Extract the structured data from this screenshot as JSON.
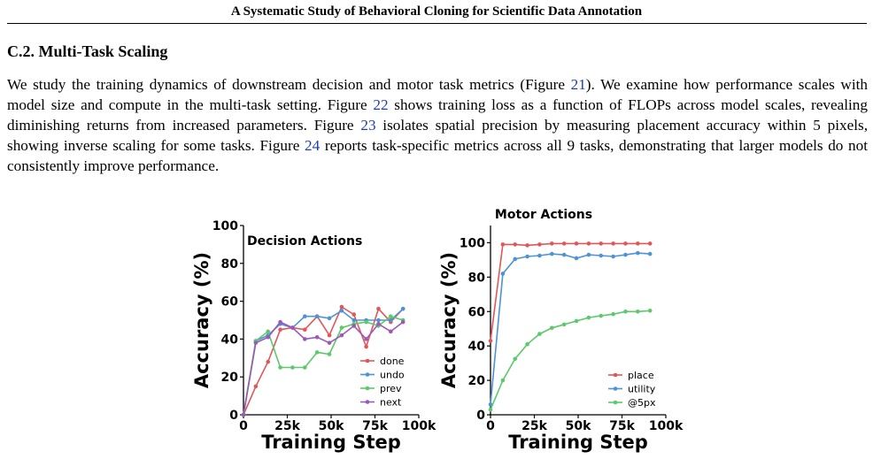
{
  "header": {
    "running_title": "A Systematic Study of Behavioral Cloning for Scientific Data Annotation"
  },
  "section": {
    "title": "C.2. Multi-Task Scaling",
    "paragraph": [
      {
        "text": "We study the training dynamics of downstream decision and motor task metrics (Figure "
      },
      {
        "text": "21",
        "ref": true
      },
      {
        "text": "). We examine how performance scales with model size and compute in the multi-task setting. Figure "
      },
      {
        "text": "22",
        "ref": true
      },
      {
        "text": " shows training loss as a function of FLOPs across model scales, revealing diminishing returns from increased parameters. Figure "
      },
      {
        "text": "23",
        "ref": true
      },
      {
        "text": " isolates spatial precision by measuring placement accuracy within 5 pixels, showing inverse scaling for some tasks. Figure "
      },
      {
        "text": "24",
        "ref": true
      },
      {
        "text": " reports task-specific metrics across all 9 tasks, demonstrating that larger models do not consistently improve performance."
      }
    ]
  },
  "chart_data": [
    {
      "type": "line",
      "title": "Decision Actions",
      "xlabel": "Training Step",
      "ylabel": "Accuracy (%)",
      "xlim": [
        0,
        100000
      ],
      "ylim": [
        0,
        100
      ],
      "xticks": [
        0,
        25000,
        50000,
        75000,
        100000
      ],
      "xtick_labels": [
        "0",
        "25k",
        "50k",
        "75k",
        "100k"
      ],
      "yticks": [
        0,
        20,
        40,
        60,
        80,
        100
      ],
      "ytick_labels": [
        "0",
        "20",
        "40",
        "60",
        "80",
        "100"
      ],
      "grid": false,
      "legend": "lower-right",
      "x": [
        0,
        7000,
        14000,
        21000,
        28000,
        35000,
        42000,
        49000,
        56000,
        63000,
        70000,
        77000,
        84000,
        91000
      ],
      "series": [
        {
          "name": "done",
          "color": "#e15759",
          "values": [
            0,
            15,
            28,
            45,
            46,
            45,
            52,
            42,
            57,
            53,
            36,
            56,
            49,
            56
          ]
        },
        {
          "name": "undo",
          "color": "#4e93d6",
          "values": [
            0,
            39,
            42,
            48,
            46,
            52,
            52,
            51,
            55,
            50,
            50,
            50,
            50,
            56
          ]
        },
        {
          "name": "prev",
          "color": "#5cc96a",
          "values": [
            0,
            39,
            44,
            25,
            25,
            25,
            33,
            32,
            46,
            48,
            49,
            47,
            52,
            50
          ]
        },
        {
          "name": "next",
          "color": "#9b59b6",
          "values": [
            0,
            38,
            41,
            49,
            46,
            40,
            41,
            38,
            42,
            47,
            40,
            48,
            44,
            49
          ]
        }
      ]
    },
    {
      "type": "line",
      "title": "Motor Actions",
      "xlabel": "Training Step",
      "ylabel": "Accuracy (%)",
      "xlim": [
        0,
        100000
      ],
      "ylim": [
        0,
        110
      ],
      "xticks": [
        0,
        25000,
        50000,
        75000,
        100000
      ],
      "xtick_labels": [
        "0",
        "25k",
        "50k",
        "75k",
        "100k"
      ],
      "yticks": [
        0,
        20,
        40,
        60,
        80,
        100
      ],
      "ytick_labels": [
        "0",
        "20",
        "40",
        "60",
        "80",
        "100"
      ],
      "grid": false,
      "legend": "lower-right",
      "x": [
        0,
        7000,
        14000,
        21000,
        28000,
        35000,
        42000,
        49000,
        56000,
        63000,
        70000,
        77000,
        84000,
        91000
      ],
      "series": [
        {
          "name": "place",
          "color": "#e15759",
          "values": [
            43,
            99,
            99,
            98.5,
            99,
            99.5,
            99.5,
            99.5,
            99.5,
            99.5,
            99.5,
            99.5,
            99.5,
            99.5
          ]
        },
        {
          "name": "utility",
          "color": "#4e93d6",
          "values": [
            6,
            82,
            90.5,
            92,
            92.5,
            93.5,
            93,
            91,
            93,
            92.5,
            92,
            93,
            94,
            93.5
          ]
        },
        {
          "name": "@5px",
          "color": "#5cc96a",
          "values": [
            3,
            20,
            32.5,
            41,
            47,
            50.5,
            52.5,
            54.5,
            56.5,
            57.5,
            58.5,
            60,
            60,
            60.5
          ]
        }
      ]
    }
  ]
}
